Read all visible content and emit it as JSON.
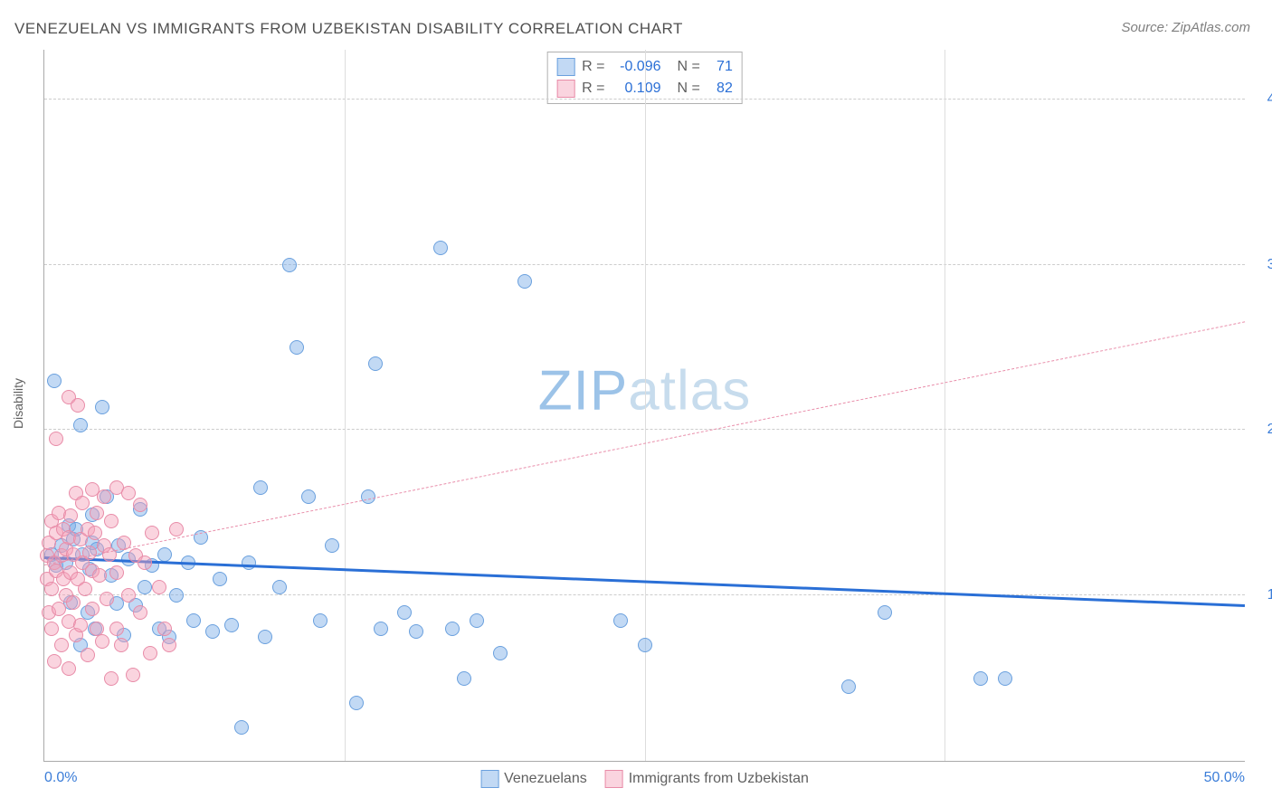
{
  "title": "VENEZUELAN VS IMMIGRANTS FROM UZBEKISTAN DISABILITY CORRELATION CHART",
  "source": "Source: ZipAtlas.com",
  "yaxis_title": "Disability",
  "watermark": {
    "part1": "ZIP",
    "part2": "atlas",
    "color1": "#9cc3e8",
    "color2": "#c7dced"
  },
  "chart": {
    "type": "scatter",
    "xlim": [
      0,
      50
    ],
    "ylim": [
      0,
      43
    ],
    "xticks": [
      {
        "val": 0,
        "label": "0.0%"
      },
      {
        "val": 50,
        "label": "50.0%"
      }
    ],
    "xgrid": [
      12.5,
      25,
      37.5
    ],
    "yticks": [
      {
        "val": 10,
        "label": "10.0%"
      },
      {
        "val": 20,
        "label": "20.0%"
      },
      {
        "val": 30,
        "label": "30.0%"
      },
      {
        "val": 40,
        "label": "40.0%"
      }
    ],
    "grid_color": "#cccccc",
    "background": "#ffffff",
    "tick_label_color": "#3b7dd8",
    "point_radius": 8,
    "series": [
      {
        "name": "Venezuelans",
        "fill": "rgba(120,170,230,0.45)",
        "stroke": "#6aa0de",
        "trend": {
          "x1": 0,
          "y1": 12.2,
          "x2": 50,
          "y2": 9.3,
          "color": "#2a6fd6",
          "width": 3,
          "dash": "solid"
        },
        "R": "-0.096",
        "N": "71",
        "points": [
          [
            0.3,
            12.5
          ],
          [
            0.5,
            11.8
          ],
          [
            0.7,
            13.0
          ],
          [
            0.9,
            12.0
          ],
          [
            1.0,
            14.2
          ],
          [
            1.1,
            9.6
          ],
          [
            1.2,
            13.4
          ],
          [
            1.3,
            14.0
          ],
          [
            1.5,
            20.3
          ],
          [
            1.5,
            7.0
          ],
          [
            1.6,
            12.5
          ],
          [
            1.8,
            9.0
          ],
          [
            1.9,
            11.6
          ],
          [
            2.0,
            13.2
          ],
          [
            2.0,
            14.9
          ],
          [
            2.1,
            8.0
          ],
          [
            2.2,
            12.8
          ],
          [
            2.4,
            21.4
          ],
          [
            0.4,
            23.0
          ],
          [
            2.6,
            16.0
          ],
          [
            2.8,
            11.2
          ],
          [
            3.0,
            9.5
          ],
          [
            3.1,
            13.0
          ],
          [
            3.3,
            7.6
          ],
          [
            3.5,
            12.2
          ],
          [
            3.8,
            9.4
          ],
          [
            4.0,
            15.2
          ],
          [
            4.2,
            10.5
          ],
          [
            4.5,
            11.8
          ],
          [
            4.8,
            8.0
          ],
          [
            5.0,
            12.5
          ],
          [
            5.2,
            7.5
          ],
          [
            5.5,
            10.0
          ],
          [
            6.0,
            12.0
          ],
          [
            6.2,
            8.5
          ],
          [
            6.5,
            13.5
          ],
          [
            7.0,
            7.8
          ],
          [
            7.3,
            11.0
          ],
          [
            7.8,
            8.2
          ],
          [
            8.2,
            2.0
          ],
          [
            8.5,
            12.0
          ],
          [
            9.0,
            16.5
          ],
          [
            9.2,
            7.5
          ],
          [
            9.8,
            10.5
          ],
          [
            10.2,
            30.0
          ],
          [
            10.5,
            25.0
          ],
          [
            11.0,
            16.0
          ],
          [
            11.5,
            8.5
          ],
          [
            12.0,
            13.0
          ],
          [
            13.0,
            3.5
          ],
          [
            13.5,
            16.0
          ],
          [
            13.8,
            24.0
          ],
          [
            14.0,
            8.0
          ],
          [
            15.0,
            9.0
          ],
          [
            15.5,
            7.8
          ],
          [
            16.5,
            31.0
          ],
          [
            17.0,
            8.0
          ],
          [
            17.5,
            5.0
          ],
          [
            18.0,
            8.5
          ],
          [
            19.0,
            6.5
          ],
          [
            20.0,
            29.0
          ],
          [
            24.0,
            8.5
          ],
          [
            25.0,
            7.0
          ],
          [
            33.5,
            4.5
          ],
          [
            35.0,
            9.0
          ],
          [
            39.0,
            5.0
          ],
          [
            40.0,
            5.0
          ]
        ]
      },
      {
        "name": "Immigrants from Uzbekistan",
        "fill": "rgba(245,160,185,0.45)",
        "stroke": "#e88ca8",
        "trend": {
          "x1": 0,
          "y1": 11.8,
          "x2": 50,
          "y2": 26.5,
          "color": "#e98fab",
          "width": 1.5,
          "dash": "6 5"
        },
        "R": "0.109",
        "N": "82",
        "points": [
          [
            0.1,
            11.0
          ],
          [
            0.1,
            12.4
          ],
          [
            0.2,
            9.0
          ],
          [
            0.2,
            13.2
          ],
          [
            0.3,
            8.0
          ],
          [
            0.3,
            14.5
          ],
          [
            0.3,
            10.4
          ],
          [
            0.4,
            12.0
          ],
          [
            0.4,
            6.0
          ],
          [
            0.5,
            19.5
          ],
          [
            0.5,
            11.5
          ],
          [
            0.5,
            13.8
          ],
          [
            0.6,
            9.2
          ],
          [
            0.6,
            15.0
          ],
          [
            0.7,
            12.4
          ],
          [
            0.7,
            7.0
          ],
          [
            0.8,
            11.0
          ],
          [
            0.8,
            14.0
          ],
          [
            0.9,
            10.0
          ],
          [
            0.9,
            12.8
          ],
          [
            1.0,
            8.4
          ],
          [
            1.0,
            13.5
          ],
          [
            1.0,
            5.6
          ],
          [
            1.0,
            22.0
          ],
          [
            1.1,
            11.4
          ],
          [
            1.1,
            14.8
          ],
          [
            1.2,
            9.6
          ],
          [
            1.2,
            12.5
          ],
          [
            1.3,
            16.2
          ],
          [
            1.3,
            7.6
          ],
          [
            1.4,
            21.5
          ],
          [
            1.4,
            11.0
          ],
          [
            1.5,
            13.4
          ],
          [
            1.5,
            8.2
          ],
          [
            1.6,
            12.0
          ],
          [
            1.6,
            15.6
          ],
          [
            1.7,
            10.4
          ],
          [
            1.8,
            14.0
          ],
          [
            1.8,
            6.4
          ],
          [
            1.9,
            12.6
          ],
          [
            2.0,
            9.2
          ],
          [
            2.0,
            16.4
          ],
          [
            2.0,
            11.5
          ],
          [
            2.1,
            13.8
          ],
          [
            2.2,
            8.0
          ],
          [
            2.2,
            15.0
          ],
          [
            2.3,
            11.2
          ],
          [
            2.4,
            7.2
          ],
          [
            2.5,
            13.0
          ],
          [
            2.5,
            16.0
          ],
          [
            2.6,
            9.8
          ],
          [
            2.7,
            12.5
          ],
          [
            2.8,
            5.0
          ],
          [
            2.8,
            14.5
          ],
          [
            3.0,
            16.5
          ],
          [
            3.0,
            8.0
          ],
          [
            3.0,
            11.4
          ],
          [
            3.2,
            7.0
          ],
          [
            3.3,
            13.2
          ],
          [
            3.5,
            16.2
          ],
          [
            3.5,
            10.0
          ],
          [
            3.7,
            5.2
          ],
          [
            3.8,
            12.4
          ],
          [
            4.0,
            9.0
          ],
          [
            4.0,
            15.5
          ],
          [
            4.2,
            12.0
          ],
          [
            4.4,
            6.5
          ],
          [
            4.5,
            13.8
          ],
          [
            4.8,
            10.5
          ],
          [
            5.0,
            8.0
          ],
          [
            5.2,
            7.0
          ],
          [
            5.5,
            14.0
          ]
        ]
      }
    ]
  },
  "stats_labels": {
    "R": "R =",
    "N": "N ="
  },
  "stat_value_color": "#2a6fd6"
}
